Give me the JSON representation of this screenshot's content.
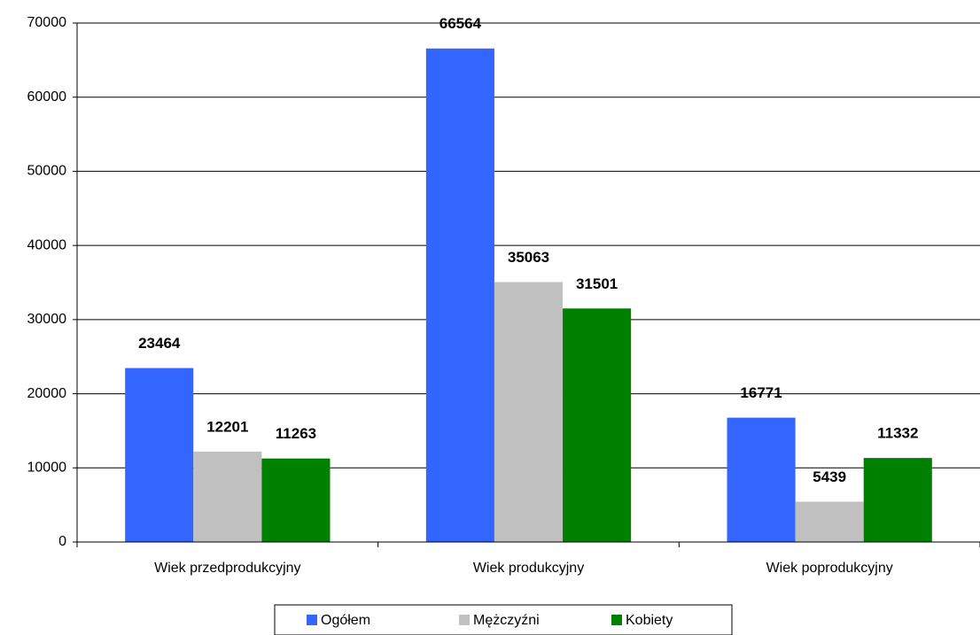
{
  "chart_data": {
    "type": "bar",
    "categories": [
      "Wiek przedprodukcyjny",
      "Wiek produkcyjny",
      "Wiek poprodukcyjny"
    ],
    "series": [
      {
        "name": "Ogółem",
        "color": "#3366ff",
        "values": [
          23464,
          66564,
          16771
        ]
      },
      {
        "name": "Mężczyźni",
        "color": "#c0c0c0",
        "values": [
          12201,
          35063,
          5439
        ]
      },
      {
        "name": "Kobiety",
        "color": "#008000",
        "values": [
          11263,
          31501,
          11332
        ]
      }
    ],
    "ylim": [
      0,
      70000
    ],
    "yticks": [
      0,
      10000,
      20000,
      30000,
      40000,
      50000,
      60000,
      70000
    ],
    "grid": true,
    "legend": "bottom"
  }
}
